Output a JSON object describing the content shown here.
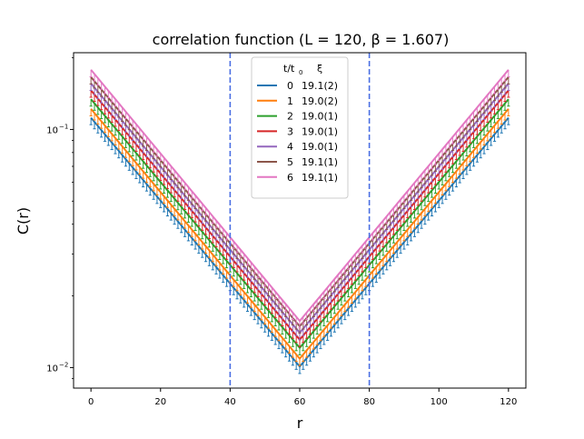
{
  "chart_data": {
    "type": "line",
    "title": "correlation function  (L = 120, β = 1.607)",
    "xlabel": "r",
    "ylabel": "C(r)",
    "xlim": [
      -5,
      125
    ],
    "ylim": [
      0.0082,
      0.21
    ],
    "yscale": "log",
    "x_ticks": [
      0,
      20,
      40,
      60,
      80,
      100,
      120
    ],
    "y_ticks": [
      {
        "value": 0.01,
        "base": "10",
        "exp": "−2"
      },
      {
        "value": 0.1,
        "base": "10",
        "exp": "−1"
      }
    ],
    "vlines": [
      40,
      80
    ],
    "vline_color": "#4a6fe3",
    "legend": {
      "placement": "top-center",
      "header_col1": "t/t",
      "header_col1_sub": "0",
      "header_col2": "ξ"
    },
    "series": [
      {
        "name": "0",
        "xi": "19.1(2)",
        "color": "#1f77b4",
        "c0": 0.112,
        "cmid": 0.0101
      },
      {
        "name": "1",
        "xi": "19.0(2)",
        "color": "#ff7f0e",
        "c0": 0.122,
        "cmid": 0.0109
      },
      {
        "name": "2",
        "xi": "19.0(1)",
        "color": "#2ca02c",
        "c0": 0.134,
        "cmid": 0.0121
      },
      {
        "name": "3",
        "xi": "19.0(1)",
        "color": "#d62728",
        "c0": 0.146,
        "cmid": 0.0131
      },
      {
        "name": "4",
        "xi": "19.0(1)",
        "color": "#9467bd",
        "c0": 0.156,
        "cmid": 0.014
      },
      {
        "name": "5",
        "xi": "19.1(1)",
        "color": "#8c564b",
        "c0": 0.166,
        "cmid": 0.0149
      },
      {
        "name": "6",
        "xi": "19.1(1)",
        "color": "#e377c2",
        "c0": 0.178,
        "cmid": 0.0157
      }
    ],
    "grid": false
  }
}
